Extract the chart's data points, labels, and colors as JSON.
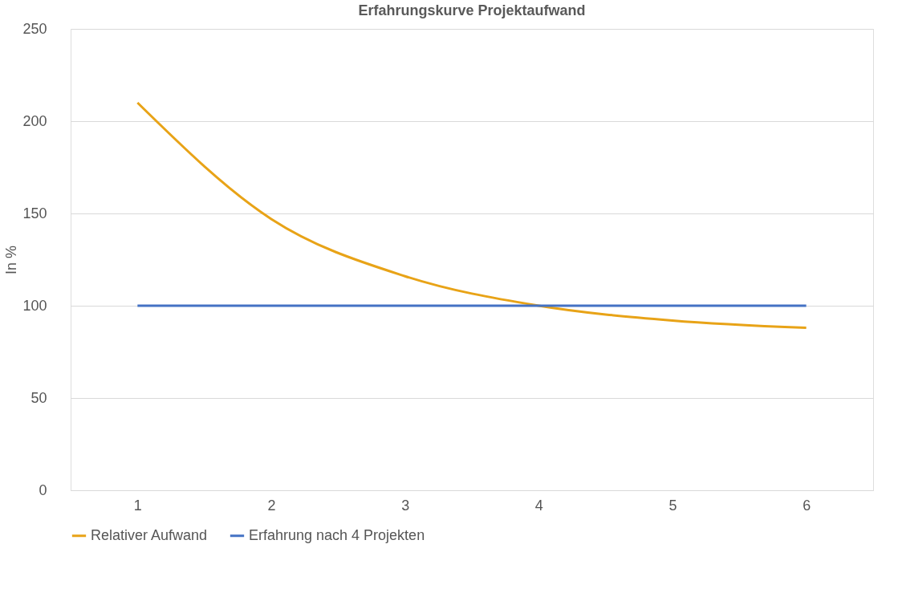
{
  "chart_data": {
    "type": "line",
    "title": "Erfahrungskurve Projektaufwand",
    "ylabel": "In %",
    "categories": [
      "1",
      "2",
      "3",
      "4",
      "5",
      "6"
    ],
    "series": [
      {
        "name": "Relativer Aufwand",
        "color": "#e8a317",
        "values": [
          210,
          147,
          116,
          100,
          92,
          88
        ]
      },
      {
        "name": "Erfahrung nach 4 Projekten",
        "color": "#4472c4",
        "values": [
          100,
          100,
          100,
          100,
          100,
          100
        ]
      }
    ],
    "ylim": [
      0,
      250
    ],
    "yticks": [
      0,
      50,
      100,
      150,
      200,
      250
    ],
    "grid": "y",
    "legend": "bottom",
    "marker": "none",
    "line_style": "solid"
  }
}
